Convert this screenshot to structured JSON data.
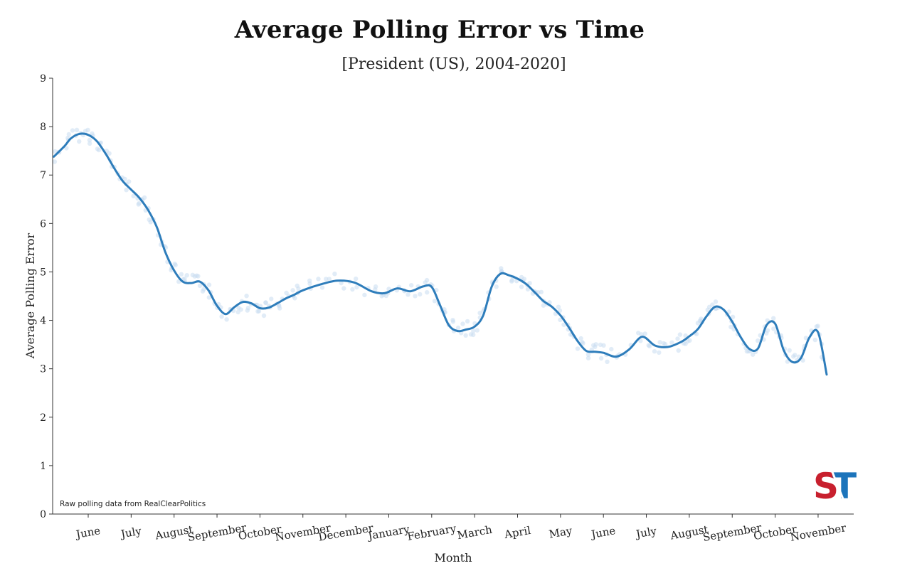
{
  "chart_data": {
    "type": "line",
    "title": "Average Polling Error vs Time",
    "subtitle": "[President (US), 2004-2020]",
    "xlabel": "Month",
    "ylabel": "Average Polling Error",
    "ylim": [
      0,
      9
    ],
    "yticks": [
      0,
      1,
      2,
      3,
      4,
      5,
      6,
      7,
      8,
      9
    ],
    "xlim": [
      -0.8,
      17.2
    ],
    "categories": [
      "June",
      "July",
      "August",
      "September",
      "October",
      "November",
      "December",
      "January",
      "February",
      "March",
      "April",
      "May",
      "June",
      "July",
      "August",
      "September",
      "October",
      "November"
    ],
    "grid": false,
    "series": [
      {
        "color": "#2e7dbb",
        "x": [
          -0.8,
          -0.55,
          -0.4,
          -0.2,
          0.0,
          0.2,
          0.4,
          0.6,
          0.8,
          1.0,
          1.2,
          1.4,
          1.6,
          1.8,
          2.0,
          2.2,
          2.4,
          2.6,
          2.8,
          3.0,
          3.2,
          3.4,
          3.6,
          3.8,
          4.0,
          4.2,
          4.4,
          4.6,
          4.8,
          5.0,
          5.4,
          5.8,
          6.2,
          6.6,
          6.9,
          7.2,
          7.5,
          7.8,
          8.0,
          8.2,
          8.4,
          8.6,
          8.8,
          9.0,
          9.2,
          9.4,
          9.6,
          9.8,
          10.0,
          10.2,
          10.4,
          10.6,
          10.8,
          11.0,
          11.2,
          11.4,
          11.6,
          11.8,
          12.0,
          12.3,
          12.6,
          12.9,
          13.2,
          13.5,
          13.8,
          14.0,
          14.2,
          14.4,
          14.6,
          14.8,
          15.0,
          15.2,
          15.4,
          15.6,
          15.8,
          16.0,
          16.2,
          16.4,
          16.6,
          16.8,
          17.0
        ],
        "values": [
          7.38,
          7.6,
          7.76,
          7.85,
          7.83,
          7.7,
          7.45,
          7.15,
          6.88,
          6.7,
          6.52,
          6.27,
          5.92,
          5.4,
          5.03,
          4.8,
          4.77,
          4.8,
          4.62,
          4.3,
          4.13,
          4.27,
          4.38,
          4.35,
          4.25,
          4.26,
          4.35,
          4.45,
          4.53,
          4.62,
          4.74,
          4.82,
          4.78,
          4.6,
          4.56,
          4.66,
          4.6,
          4.7,
          4.69,
          4.3,
          3.9,
          3.78,
          3.81,
          3.87,
          4.1,
          4.7,
          4.96,
          4.93,
          4.86,
          4.75,
          4.58,
          4.4,
          4.28,
          4.1,
          3.85,
          3.57,
          3.37,
          3.35,
          3.33,
          3.25,
          3.4,
          3.66,
          3.48,
          3.45,
          3.55,
          3.67,
          3.82,
          4.08,
          4.28,
          4.22,
          3.97,
          3.65,
          3.41,
          3.42,
          3.9,
          3.93,
          3.38,
          3.14,
          3.22,
          3.65,
          3.75
        ]
      }
    ],
    "series_tail": {
      "x": [
        17.2
      ],
      "values": [
        2.88
      ]
    },
    "annotation": "Raw polling data from RealClearPolitics",
    "logo_text": [
      "S",
      "T"
    ],
    "marker_color": "#c9dcf0"
  }
}
